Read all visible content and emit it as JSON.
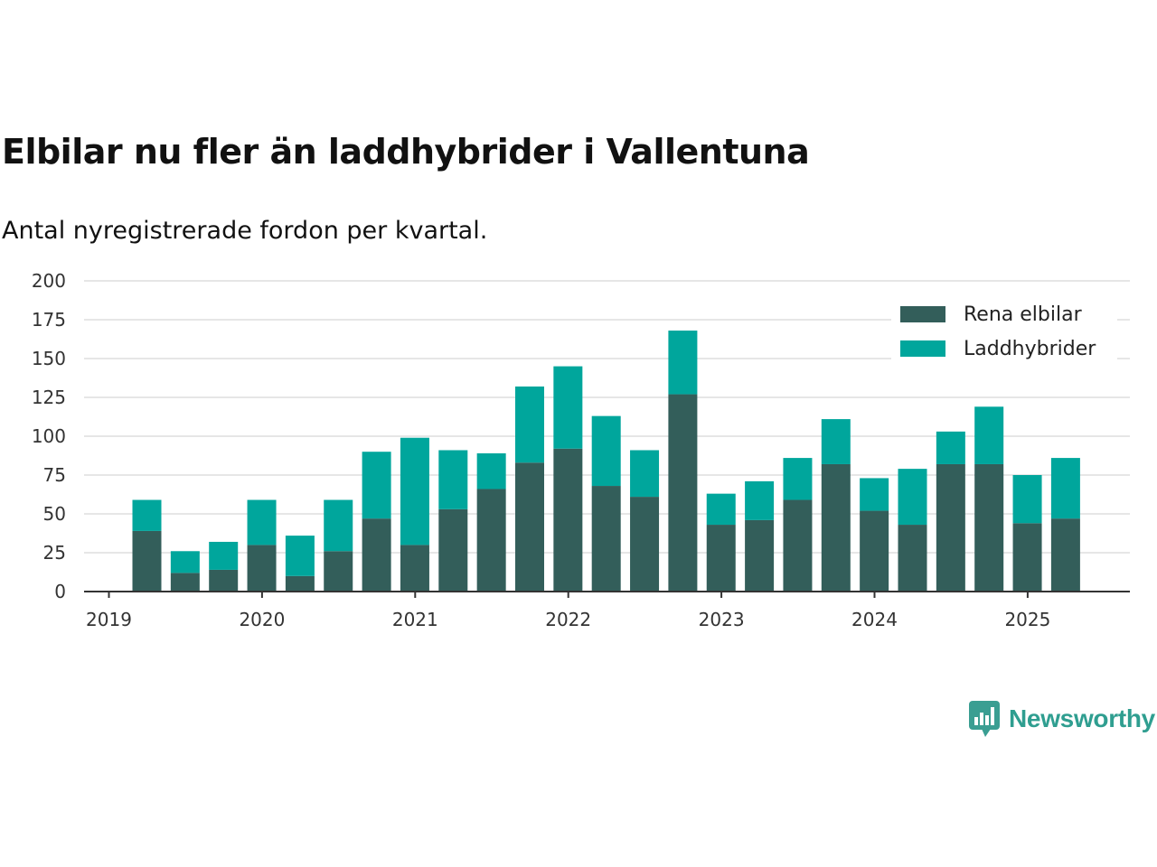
{
  "title": "Elbilar nu fler än laddhybrider i Vallentuna",
  "subtitle": "Antal nyregistrerade fordon per kvartal.",
  "brand": {
    "name": "Newsworthy",
    "icon": "bar-chart-speech-bubble-icon",
    "color": "#3a9e92"
  },
  "chart_data": {
    "type": "bar",
    "stacked": true,
    "categories": [
      "2019 Q2",
      "2019 Q3",
      "2019 Q4",
      "2020 Q1",
      "2020 Q2",
      "2020 Q3",
      "2020 Q4",
      "2021 Q1",
      "2021 Q2",
      "2021 Q3",
      "2021 Q4",
      "2022 Q1",
      "2022 Q2",
      "2022 Q3",
      "2022 Q4",
      "2023 Q1",
      "2023 Q2",
      "2023 Q3",
      "2023 Q4",
      "2024 Q1",
      "2024 Q2",
      "2024 Q3",
      "2024 Q4",
      "2025 Q1",
      "2025 Q2"
    ],
    "series": [
      {
        "name": "Rena elbilar",
        "color": "#335e5a",
        "values": [
          39,
          12,
          14,
          30,
          10,
          26,
          47,
          30,
          53,
          66,
          83,
          92,
          68,
          61,
          127,
          43,
          46,
          59,
          82,
          52,
          43,
          82,
          82,
          44,
          47
        ]
      },
      {
        "name": "Laddhybrider",
        "color": "#00a69c",
        "values": [
          20,
          14,
          18,
          29,
          26,
          33,
          43,
          69,
          38,
          23,
          49,
          53,
          45,
          30,
          41,
          20,
          25,
          27,
          29,
          21,
          36,
          21,
          37,
          31,
          39
        ]
      }
    ],
    "x_tick_labels": [
      "2019",
      "2020",
      "2021",
      "2022",
      "2023",
      "2024",
      "2025"
    ],
    "y_ticks": [
      0,
      25,
      50,
      75,
      100,
      125,
      150,
      175,
      200
    ],
    "ylim": [
      0,
      200
    ],
    "grid": true,
    "legend_position": "top-right"
  }
}
